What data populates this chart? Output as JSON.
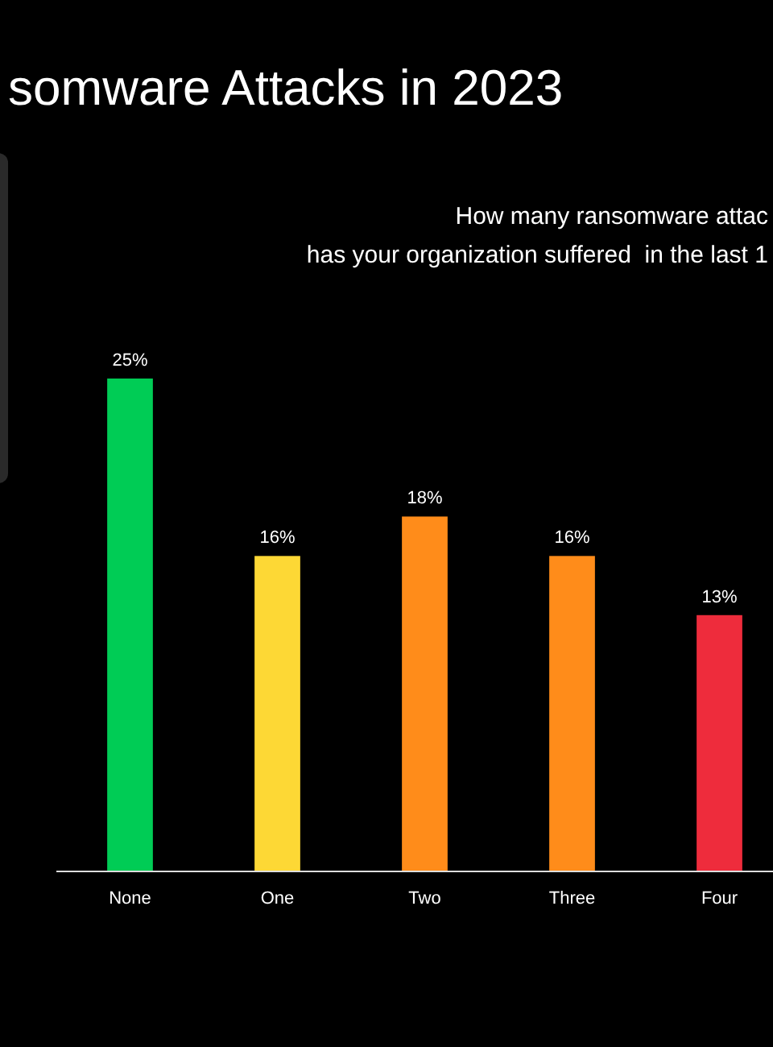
{
  "chart_data": {
    "type": "bar",
    "title": "somware Attacks in 2023",
    "subtitle": "How many ransomware attac\nhas your organization suffered  in the last 1",
    "categories": [
      "None",
      "One",
      "Two",
      "Three",
      "Four"
    ],
    "values": [
      25,
      16,
      18,
      16,
      13
    ],
    "colors": [
      "#00cc55",
      "#fdd835",
      "#ff8c1a",
      "#ff8c1a",
      "#ee2c3c"
    ],
    "value_labels": [
      "25%",
      "16%",
      "18%",
      "16%",
      "13%"
    ]
  }
}
